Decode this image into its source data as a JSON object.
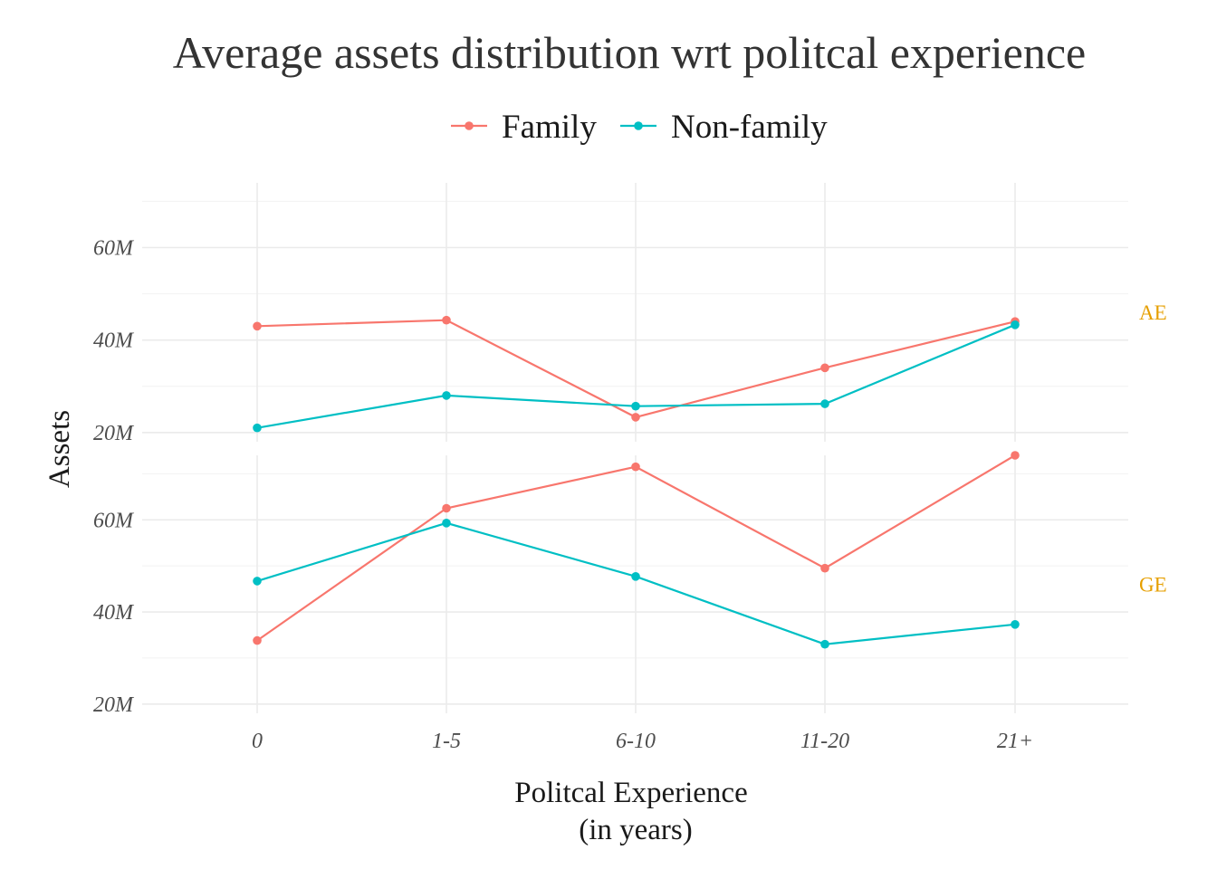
{
  "chart_data": {
    "type": "line",
    "title": "Average assets distribution wrt politcal experience",
    "xlabel": [
      "Politcal Experience",
      "(in years)"
    ],
    "ylabel": "Assets",
    "categories": [
      "0",
      "1-5",
      "6-10",
      "11-20",
      "21+"
    ],
    "y_tick_labels": [
      "20M",
      "40M",
      "60M"
    ],
    "y_ticks": [
      20,
      40,
      60
    ],
    "ylim": [
      18,
      74
    ],
    "legend_position": "top",
    "grid": true,
    "colors": {
      "Family": "#F8766D",
      "Non-family": "#00BFC4",
      "strip": "#E69F00"
    },
    "legend": [
      {
        "name": "Family",
        "color": "#F8766D"
      },
      {
        "name": "Non-family",
        "color": "#00BFC4"
      }
    ],
    "panels": [
      {
        "strip": "AE",
        "series": [
          {
            "name": "Family",
            "values": [
              43,
              44.3,
              23.3,
              34,
              44
            ]
          },
          {
            "name": "Non-family",
            "values": [
              21,
              28,
              25.7,
              26.2,
              43.3
            ]
          }
        ]
      },
      {
        "strip": "GE",
        "series": [
          {
            "name": "Family",
            "values": [
              33.8,
              62.5,
              71.5,
              49.5,
              74
            ]
          },
          {
            "name": "Non-family",
            "values": [
              46.7,
              59.3,
              47.7,
              33,
              37.3
            ]
          }
        ]
      }
    ]
  }
}
